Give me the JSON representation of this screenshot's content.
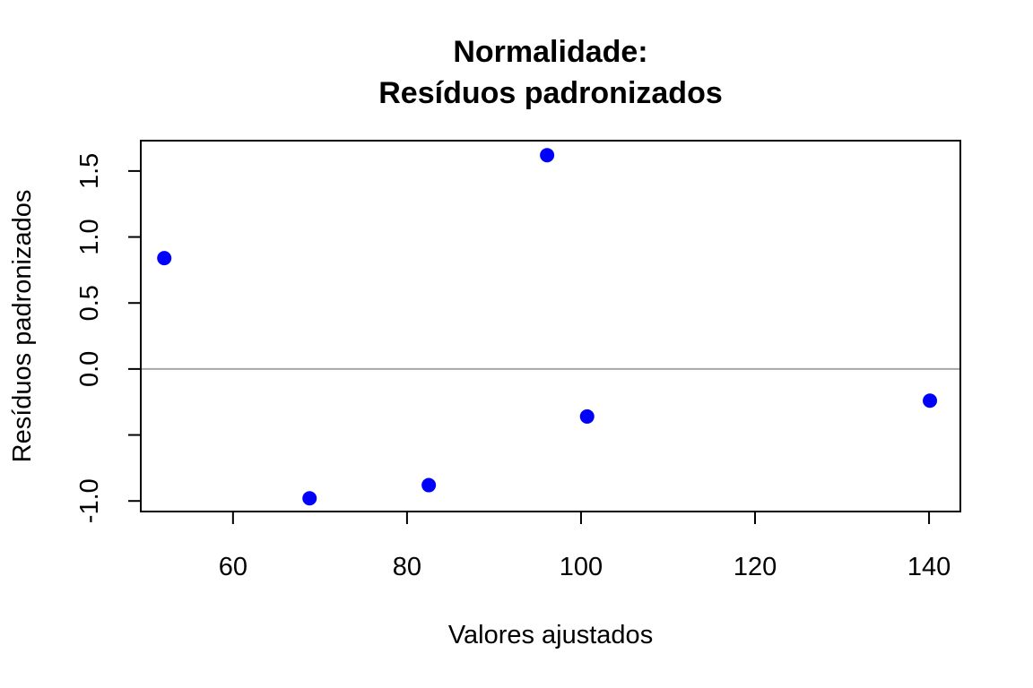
{
  "chart_data": {
    "type": "scatter",
    "title": [
      "Normalidade:",
      "Resíduos padronizados"
    ],
    "xlabel": "Valores ajustados",
    "ylabel": "Resíduos padronizados",
    "xlim": [
      49.4,
      143.6
    ],
    "ylim": [
      -1.08,
      1.73
    ],
    "x_ticks": [
      60,
      80,
      100,
      120,
      140
    ],
    "x_tick_labels": [
      "60",
      "80",
      "100",
      "120",
      "140"
    ],
    "y_ticks": [
      -1.0,
      -0.5,
      0.0,
      0.5,
      1.0,
      1.5
    ],
    "y_tick_labels": [
      "-1.0",
      "",
      "0.0",
      "0.5",
      "1.0",
      "1.5"
    ],
    "reference_line": {
      "y": 0,
      "color": "#a6a6a6"
    },
    "point_color": "#0000ff",
    "grid": false,
    "series": [
      {
        "x": [
          52.1,
          68.8,
          82.5,
          96.1,
          100.7,
          140.1
        ],
        "y": [
          0.84,
          -0.98,
          -0.88,
          1.62,
          -0.36,
          -0.24
        ]
      }
    ]
  }
}
